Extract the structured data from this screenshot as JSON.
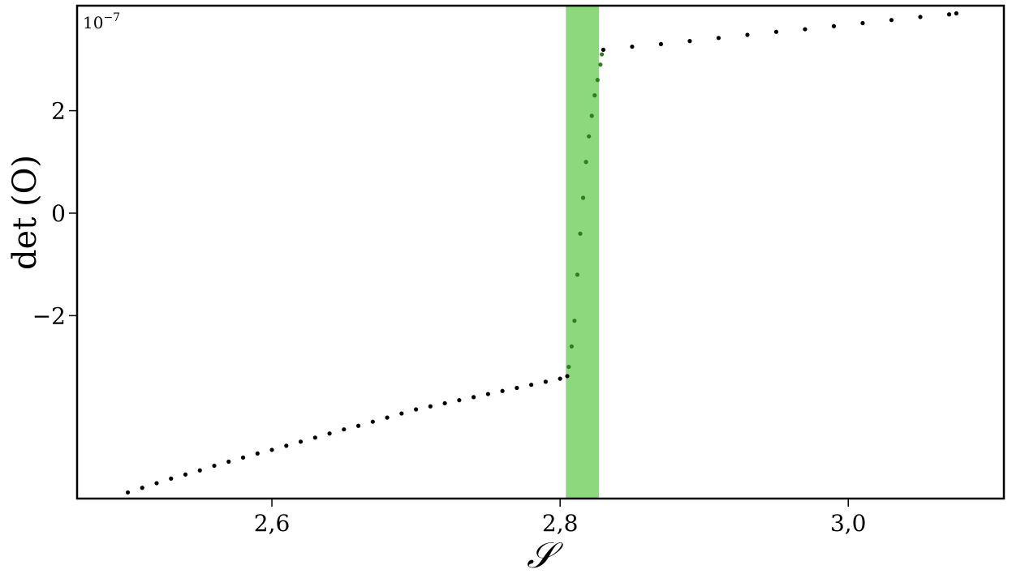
{
  "chart_data": {
    "type": "scatter",
    "xlabel": "𝒮",
    "ylabel": "det (O)",
    "y_multiplier": {
      "base": "10",
      "exponent": "−7"
    },
    "xlim": [
      2.4648,
      3.108
    ],
    "ylim": [
      -5.57,
      4.05
    ],
    "xticks": [
      {
        "value": 2.6,
        "label": "2,6"
      },
      {
        "value": 2.8,
        "label": "2,8"
      },
      {
        "value": 3.0,
        "label": "3,0"
      }
    ],
    "yticks": [
      {
        "value": -2,
        "label": "−2"
      },
      0,
      2
    ],
    "highlight": {
      "x": [
        2.804,
        2.827
      ],
      "color": "#8dd87c"
    },
    "series": [
      {
        "color": "#000000",
        "x": [
          2.5,
          2.51,
          2.52,
          2.53,
          2.54,
          2.55,
          2.56,
          2.57,
          2.58,
          2.59,
          2.6,
          2.61,
          2.62,
          2.63,
          2.64,
          2.65,
          2.66,
          2.67,
          2.68,
          2.69,
          2.7,
          2.71,
          2.72,
          2.73,
          2.74,
          2.75,
          2.76,
          2.77,
          2.78,
          2.79,
          2.8,
          2.805
        ],
        "values": [
          -5.45,
          -5.36,
          -5.27,
          -5.18,
          -5.1,
          -5.02,
          -4.93,
          -4.85,
          -4.77,
          -4.69,
          -4.62,
          -4.54,
          -4.46,
          -4.38,
          -4.3,
          -4.22,
          -4.15,
          -4.07,
          -3.99,
          -3.91,
          -3.83,
          -3.77,
          -3.71,
          -3.65,
          -3.59,
          -3.53,
          -3.47,
          -3.41,
          -3.35,
          -3.29,
          -3.23,
          -3.18
        ]
      },
      {
        "color": "#2e7d1e",
        "x": [
          2.806,
          2.808,
          2.81,
          2.812,
          2.814,
          2.816,
          2.818,
          2.82,
          2.822,
          2.824,
          2.826,
          2.828,
          2.829
        ],
        "values": [
          -3.0,
          -2.6,
          -2.1,
          -1.2,
          -0.4,
          0.3,
          1.0,
          1.5,
          1.9,
          2.3,
          2.6,
          2.9,
          3.1
        ]
      },
      {
        "color": "#000000",
        "x": [
          2.83,
          2.85,
          2.87,
          2.89,
          2.91,
          2.93,
          2.95,
          2.97,
          2.99,
          3.01,
          3.03,
          3.05,
          3.07,
          3.075
        ],
        "values": [
          3.19,
          3.25,
          3.3,
          3.36,
          3.42,
          3.48,
          3.54,
          3.59,
          3.65,
          3.71,
          3.77,
          3.83,
          3.88,
          3.9
        ]
      }
    ]
  }
}
